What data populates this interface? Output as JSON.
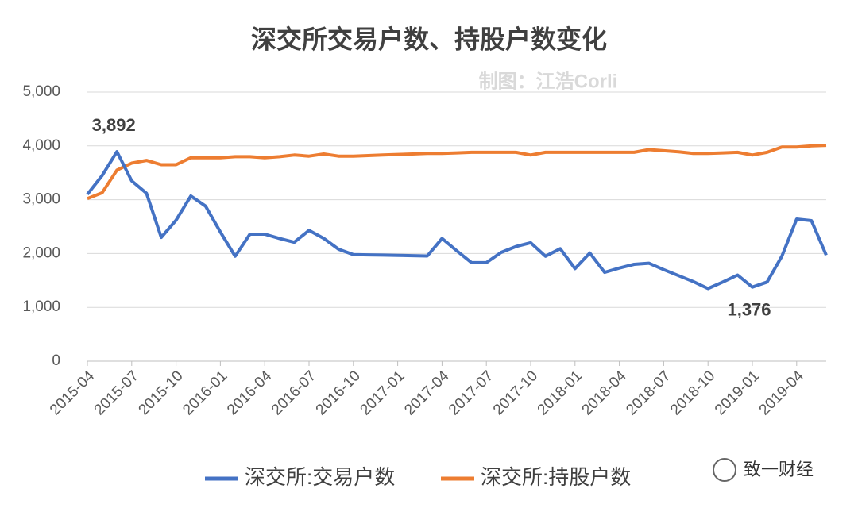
{
  "chart_data": {
    "type": "line",
    "title": "深交所交易户数、持股户数变化",
    "subtitle": "制图：江浩Corli",
    "source": "致一财经",
    "categories": [
      "2015-04",
      null,
      null,
      "2015-07",
      null,
      null,
      "2015-10",
      null,
      null,
      "2016-01",
      null,
      null,
      "2016-04",
      null,
      null,
      "2016-07",
      null,
      null,
      "2016-10",
      null,
      null,
      "2017-01",
      null,
      null,
      "2017-04",
      null,
      null,
      "2017-07",
      null,
      null,
      "2017-10",
      null,
      null,
      "2018-01",
      null,
      null,
      "2018-04",
      null,
      null,
      "2018-07",
      null,
      null,
      "2018-10",
      null,
      null,
      "2019-01",
      null,
      null,
      "2019-04",
      null,
      null
    ],
    "series": [
      {
        "name": "深交所:交易户数",
        "color": "#4472c4",
        "values": [
          3100,
          3450,
          3892,
          3350,
          3120,
          2300,
          2620,
          3070,
          2880,
          2400,
          1950,
          2360,
          2360,
          2280,
          2210,
          2430,
          2280,
          2080,
          1980,
          1975,
          1970,
          1965,
          1960,
          1955,
          2280,
          2050,
          1830,
          1830,
          2020,
          2130,
          2200,
          1950,
          2090,
          1720,
          2010,
          1650,
          1730,
          1800,
          1820,
          1700,
          1590,
          1480,
          1350,
          1470,
          1600,
          1376,
          1470,
          1950,
          2640,
          2610,
          1970
        ],
        "value_labels": [
          null,
          null,
          "3,892",
          null,
          null,
          null,
          null,
          null,
          null,
          null,
          null,
          null,
          null,
          null,
          null,
          null,
          null,
          null,
          null,
          null,
          null,
          null,
          null,
          null,
          null,
          null,
          null,
          null,
          null,
          null,
          null,
          null,
          null,
          null,
          null,
          null,
          null,
          null,
          null,
          null,
          null,
          null,
          null,
          null,
          null,
          "1,376",
          null,
          null,
          null,
          null,
          null
        ]
      },
      {
        "name": "深交所:持股户数",
        "color": "#ed7d31",
        "values": [
          3020,
          3130,
          3550,
          3680,
          3730,
          3650,
          3650,
          3780,
          3780,
          3780,
          3800,
          3800,
          3780,
          3800,
          3830,
          3810,
          3850,
          3810,
          3810,
          3820,
          3830,
          3840,
          3850,
          3860,
          3860,
          3870,
          3880,
          3880,
          3880,
          3880,
          3830,
          3880,
          3880,
          3880,
          3880,
          3880,
          3880,
          3880,
          3930,
          3910,
          3890,
          3860,
          3860,
          3870,
          3880,
          3830,
          3880,
          3980,
          3980,
          4000,
          4010
        ]
      }
    ],
    "ylim": [
      0,
      5000
    ],
    "yticks": [
      0,
      {
        "value": 1000,
        "label": "1,000"
      },
      {
        "value": 2000,
        "label": "2,000"
      },
      {
        "value": 3000,
        "label": "3,000"
      },
      {
        "value": 4000,
        "label": "4,000"
      },
      {
        "value": 5000,
        "label": "5,000"
      }
    ],
    "grid": true,
    "legend": "bottom"
  }
}
